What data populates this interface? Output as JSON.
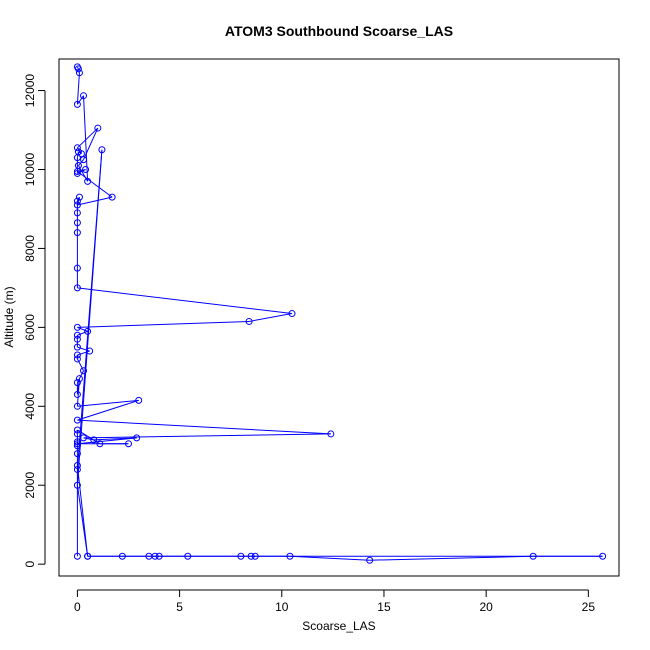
{
  "chart_data": {
    "type": "scatter",
    "title": "ATOM3 Southbound Scoarse_LAS",
    "xlabel": "Scoarse_LAS",
    "ylabel": "Altitude (m)",
    "xlim": [
      -0.9,
      26.5
    ],
    "ylim": [
      -300,
      12800
    ],
    "xticks": [
      0,
      5,
      10,
      15,
      20,
      25
    ],
    "xtick_labels": [
      "0",
      "5",
      "10",
      "15",
      "20",
      "25"
    ],
    "yticks": [
      0,
      2000,
      4000,
      6000,
      8000,
      10000,
      12000
    ],
    "ytick_labels": [
      "0",
      "2000",
      "4000",
      "6000",
      "8000",
      "10000",
      "12000"
    ],
    "grid": false,
    "style": "points connected by lines (open circles)",
    "series_color": "#0000ff",
    "x": [
      0.0,
      0.05,
      0.1,
      0.0,
      0.3,
      0.5,
      0.05,
      0.3,
      1.0,
      0.0,
      0.2,
      0.05,
      0.0,
      0.0,
      0.4,
      0.0,
      1.7,
      0.0,
      0.1,
      0.0,
      0.0,
      0.0,
      0.0,
      0.0,
      0.0,
      10.5,
      8.4,
      0.0,
      0.5,
      0.0,
      0.0,
      0.0,
      0.6,
      0.0,
      0.0,
      0.3,
      0.0,
      0.0,
      0.1,
      0.0,
      3.0,
      0.0,
      12.4,
      0.3,
      0.8,
      2.9,
      0.0,
      2.5,
      1.1,
      0.0,
      0.0,
      0.0,
      0.0,
      0.0,
      0.0,
      0.5,
      2.2,
      3.5,
      3.8,
      4.0,
      5.4,
      8.0,
      8.5,
      8.7,
      10.4,
      14.3,
      22.3,
      25.7,
      0.5,
      0.0,
      1.2,
      0.0,
      0.0
    ],
    "y": [
      12600,
      12550,
      12450,
      11650,
      11870,
      9700,
      10100,
      10250,
      11050,
      10550,
      10400,
      10450,
      10300,
      9900,
      10000,
      9950,
      9300,
      9100,
      9300,
      9200,
      8900,
      8650,
      8400,
      7500,
      7000,
      6350,
      6150,
      6000,
      5900,
      5800,
      5700,
      5500,
      5400,
      5300,
      5200,
      4900,
      4600,
      4300,
      4700,
      4000,
      4150,
      3650,
      3300,
      3200,
      3150,
      3200,
      3050,
      3050,
      3050,
      3400,
      3300,
      3100,
      3000,
      2800,
      2500,
      200,
      200,
      200,
      200,
      200,
      200,
      200,
      200,
      200,
      200,
      100,
      200,
      200,
      200,
      2000,
      10500,
      2400,
      200
    ]
  }
}
